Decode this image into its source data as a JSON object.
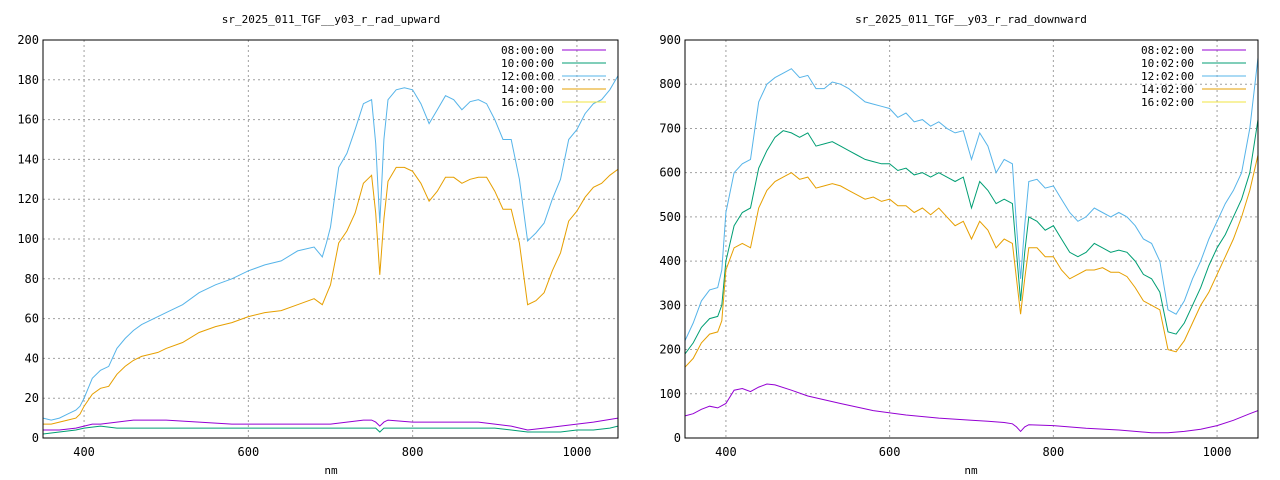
{
  "chart_data": [
    {
      "type": "line",
      "title": "sr_2025_011_TGF__y03_r_rad_upward",
      "xlabel": "nm",
      "ylabel": "",
      "xlim": [
        350,
        1050
      ],
      "ylim": [
        0,
        200
      ],
      "xticks": [
        400,
        600,
        800,
        1000
      ],
      "yticks": [
        0,
        20,
        40,
        60,
        80,
        100,
        120,
        140,
        160,
        180,
        200
      ],
      "grid": true,
      "legend_position": "top-right",
      "series": [
        {
          "name": "08:00:00",
          "color": "#9400d3",
          "x": [
            350,
            370,
            390,
            400,
            410,
            420,
            440,
            460,
            480,
            500,
            540,
            580,
            620,
            660,
            700,
            720,
            740,
            750,
            755,
            760,
            765,
            770,
            800,
            840,
            880,
            900,
            920,
            940,
            960,
            980,
            1000,
            1020,
            1050
          ],
          "y": [
            4,
            4,
            5,
            6,
            7,
            7,
            8,
            9,
            9,
            9,
            8,
            7,
            7,
            7,
            7,
            8,
            9,
            9,
            8,
            6,
            8,
            9,
            8,
            8,
            8,
            7,
            6,
            4,
            5,
            6,
            7,
            8,
            10
          ]
        },
        {
          "name": "10:00:00",
          "color": "#009e73",
          "x": [
            350,
            370,
            390,
            400,
            420,
            440,
            480,
            520,
            560,
            600,
            640,
            680,
            700,
            710,
            720,
            740,
            750,
            755,
            760,
            765,
            770,
            780,
            800,
            810,
            820,
            840,
            860,
            880,
            900,
            920,
            940,
            960,
            980,
            1000,
            1020,
            1040,
            1050
          ],
          "y": [
            2,
            3,
            4,
            5,
            6,
            5,
            5,
            5,
            5,
            5,
            5,
            5,
            5,
            5,
            5,
            5,
            5,
            5,
            3,
            5,
            5,
            5,
            5,
            5,
            5,
            5,
            5,
            5,
            5,
            4,
            3,
            3,
            3,
            4,
            4,
            5,
            6
          ]
        },
        {
          "name": "12:00:00",
          "color": "#56b4e9",
          "x": [
            350,
            360,
            370,
            380,
            390,
            395,
            400,
            410,
            420,
            430,
            440,
            450,
            460,
            470,
            480,
            490,
            500,
            520,
            540,
            560,
            580,
            600,
            620,
            640,
            660,
            680,
            690,
            695,
            700,
            710,
            720,
            730,
            740,
            750,
            755,
            760,
            765,
            770,
            780,
            790,
            800,
            810,
            820,
            830,
            840,
            850,
            860,
            870,
            880,
            890,
            900,
            910,
            920,
            930,
            940,
            950,
            960,
            970,
            980,
            990,
            1000,
            1010,
            1020,
            1030,
            1040,
            1050
          ],
          "y": [
            10,
            9,
            10,
            12,
            14,
            16,
            20,
            30,
            34,
            36,
            45,
            50,
            54,
            57,
            59,
            61,
            63,
            67,
            73,
            77,
            80,
            84,
            87,
            89,
            94,
            96,
            91,
            98,
            106,
            136,
            143,
            155,
            168,
            170,
            148,
            108,
            150,
            170,
            175,
            176,
            175,
            168,
            158,
            165,
            172,
            170,
            165,
            169,
            170,
            168,
            160,
            150,
            150,
            130,
            99,
            103,
            108,
            120,
            130,
            150,
            155,
            163,
            168,
            170,
            175,
            182
          ]
        },
        {
          "name": "14:00:00",
          "color": "#e69f00",
          "x": [
            350,
            360,
            370,
            380,
            390,
            395,
            400,
            410,
            420,
            430,
            440,
            450,
            460,
            470,
            480,
            490,
            500,
            520,
            540,
            560,
            580,
            600,
            620,
            640,
            660,
            680,
            690,
            695,
            700,
            710,
            720,
            730,
            740,
            750,
            755,
            760,
            765,
            770,
            780,
            790,
            800,
            810,
            820,
            830,
            840,
            850,
            860,
            870,
            880,
            890,
            900,
            910,
            920,
            930,
            940,
            950,
            960,
            970,
            980,
            990,
            1000,
            1010,
            1020,
            1030,
            1040,
            1050
          ],
          "y": [
            7,
            7,
            8,
            9,
            10,
            12,
            16,
            22,
            25,
            26,
            32,
            36,
            39,
            41,
            42,
            43,
            45,
            48,
            53,
            56,
            58,
            61,
            63,
            64,
            67,
            70,
            67,
            72,
            77,
            98,
            104,
            113,
            128,
            132,
            113,
            82,
            110,
            129,
            136,
            136,
            134,
            128,
            119,
            124,
            131,
            131,
            128,
            130,
            131,
            131,
            124,
            115,
            115,
            98,
            67,
            69,
            73,
            84,
            93,
            109,
            114,
            121,
            126,
            128,
            132,
            135
          ]
        },
        {
          "name": "16:00:00",
          "color": "#f0e442",
          "x": [],
          "y": []
        }
      ]
    },
    {
      "type": "line",
      "title": "sr_2025_011_TGF__y03_r_rad_downward",
      "xlabel": "nm",
      "ylabel": "",
      "xlim": [
        350,
        1050
      ],
      "ylim": [
        0,
        900
      ],
      "xticks": [
        400,
        600,
        800,
        1000
      ],
      "yticks": [
        0,
        100,
        200,
        300,
        400,
        500,
        600,
        700,
        800,
        900
      ],
      "grid": true,
      "legend_position": "top-right",
      "series": [
        {
          "name": "08:02:00",
          "color": "#9400d3",
          "x": [
            350,
            360,
            370,
            380,
            390,
            400,
            410,
            420,
            430,
            440,
            450,
            460,
            480,
            500,
            540,
            580,
            620,
            660,
            700,
            720,
            740,
            750,
            755,
            760,
            765,
            770,
            800,
            840,
            880,
            900,
            920,
            940,
            960,
            980,
            1000,
            1020,
            1040,
            1050
          ],
          "y": [
            50,
            55,
            65,
            72,
            68,
            78,
            108,
            112,
            105,
            115,
            122,
            120,
            108,
            95,
            78,
            62,
            52,
            45,
            40,
            38,
            35,
            32,
            25,
            15,
            25,
            30,
            28,
            22,
            18,
            15,
            12,
            12,
            15,
            20,
            28,
            40,
            55,
            62
          ]
        },
        {
          "name": "10:02:00",
          "color": "#009e73",
          "x": [
            350,
            360,
            370,
            380,
            390,
            395,
            400,
            410,
            420,
            430,
            440,
            450,
            460,
            470,
            480,
            490,
            500,
            510,
            520,
            530,
            540,
            550,
            560,
            570,
            580,
            590,
            600,
            610,
            620,
            630,
            640,
            650,
            660,
            670,
            680,
            690,
            700,
            710,
            720,
            730,
            740,
            750,
            755,
            760,
            765,
            770,
            780,
            790,
            800,
            810,
            820,
            830,
            840,
            850,
            860,
            870,
            880,
            890,
            900,
            910,
            920,
            930,
            940,
            950,
            960,
            970,
            980,
            990,
            1000,
            1010,
            1020,
            1030,
            1040,
            1050
          ],
          "y": [
            190,
            215,
            250,
            270,
            275,
            300,
            400,
            480,
            510,
            520,
            610,
            650,
            680,
            695,
            690,
            680,
            690,
            660,
            665,
            670,
            660,
            650,
            640,
            630,
            625,
            620,
            620,
            605,
            610,
            595,
            600,
            590,
            600,
            590,
            580,
            590,
            520,
            580,
            560,
            530,
            540,
            530,
            420,
            310,
            420,
            500,
            490,
            470,
            480,
            450,
            420,
            410,
            420,
            440,
            430,
            420,
            425,
            420,
            400,
            370,
            360,
            330,
            240,
            235,
            260,
            300,
            340,
            390,
            430,
            460,
            500,
            540,
            600,
            720
          ]
        },
        {
          "name": "12:02:00",
          "color": "#56b4e9",
          "x": [
            350,
            360,
            370,
            380,
            390,
            395,
            400,
            410,
            420,
            430,
            440,
            450,
            460,
            470,
            480,
            490,
            500,
            510,
            520,
            530,
            540,
            550,
            560,
            570,
            580,
            590,
            600,
            610,
            620,
            630,
            640,
            650,
            660,
            670,
            680,
            690,
            700,
            710,
            720,
            730,
            740,
            750,
            755,
            760,
            765,
            770,
            780,
            790,
            800,
            810,
            820,
            830,
            840,
            850,
            860,
            870,
            880,
            890,
            900,
            910,
            920,
            930,
            940,
            950,
            960,
            970,
            980,
            990,
            1000,
            1010,
            1020,
            1030,
            1040,
            1050
          ],
          "y": [
            220,
            260,
            310,
            335,
            340,
            380,
            510,
            600,
            620,
            630,
            760,
            800,
            815,
            825,
            835,
            815,
            820,
            790,
            790,
            805,
            800,
            790,
            775,
            760,
            755,
            750,
            745,
            725,
            735,
            715,
            720,
            705,
            715,
            700,
            690,
            695,
            630,
            690,
            660,
            600,
            630,
            620,
            480,
            360,
            480,
            580,
            585,
            565,
            570,
            540,
            510,
            490,
            500,
            520,
            510,
            500,
            510,
            500,
            480,
            450,
            440,
            400,
            290,
            280,
            310,
            360,
            400,
            450,
            490,
            530,
            560,
            600,
            700,
            860
          ]
        },
        {
          "name": "14:02:00",
          "color": "#e69f00",
          "x": [
            350,
            360,
            370,
            380,
            390,
            395,
            400,
            410,
            420,
            430,
            440,
            450,
            460,
            470,
            480,
            490,
            500,
            510,
            520,
            530,
            540,
            550,
            560,
            570,
            580,
            590,
            600,
            610,
            620,
            630,
            640,
            650,
            660,
            670,
            680,
            690,
            700,
            710,
            720,
            730,
            740,
            750,
            755,
            760,
            765,
            770,
            780,
            790,
            800,
            810,
            820,
            830,
            840,
            850,
            860,
            870,
            880,
            890,
            900,
            910,
            920,
            930,
            940,
            950,
            960,
            970,
            980,
            990,
            1000,
            1010,
            1020,
            1030,
            1040,
            1050
          ],
          "y": [
            160,
            180,
            215,
            235,
            240,
            265,
            380,
            430,
            440,
            430,
            520,
            560,
            580,
            590,
            600,
            585,
            590,
            565,
            570,
            575,
            570,
            560,
            550,
            540,
            545,
            535,
            540,
            525,
            525,
            510,
            520,
            505,
            520,
            500,
            480,
            490,
            450,
            490,
            470,
            430,
            450,
            440,
            360,
            280,
            360,
            430,
            430,
            410,
            410,
            380,
            360,
            370,
            380,
            380,
            385,
            375,
            375,
            365,
            340,
            310,
            300,
            290,
            200,
            195,
            220,
            260,
            300,
            330,
            370,
            410,
            450,
            500,
            560,
            640
          ]
        },
        {
          "name": "16:02:00",
          "color": "#f0e442",
          "x": [],
          "y": []
        }
      ]
    }
  ]
}
